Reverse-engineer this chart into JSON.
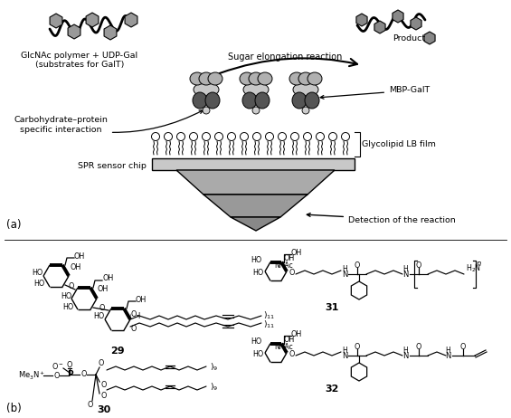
{
  "background_color": "#ffffff",
  "fig_width": 5.65,
  "fig_height": 4.62,
  "dpi": 100,
  "labels": {
    "glcnac": "GlcNAc polymer + UDP-Gal\n(substrates for GalT)",
    "product": "Product",
    "sugar_elongation": "Sugar elongation reaction",
    "mbp_galt": "MBP-GalT",
    "carbo_protein": "Carbohydrate–protein\nspecific interaction",
    "glycolipid": "Glycolipid LB film",
    "spr": "SPR sensor chip",
    "detection": "Detection of the reaction"
  }
}
